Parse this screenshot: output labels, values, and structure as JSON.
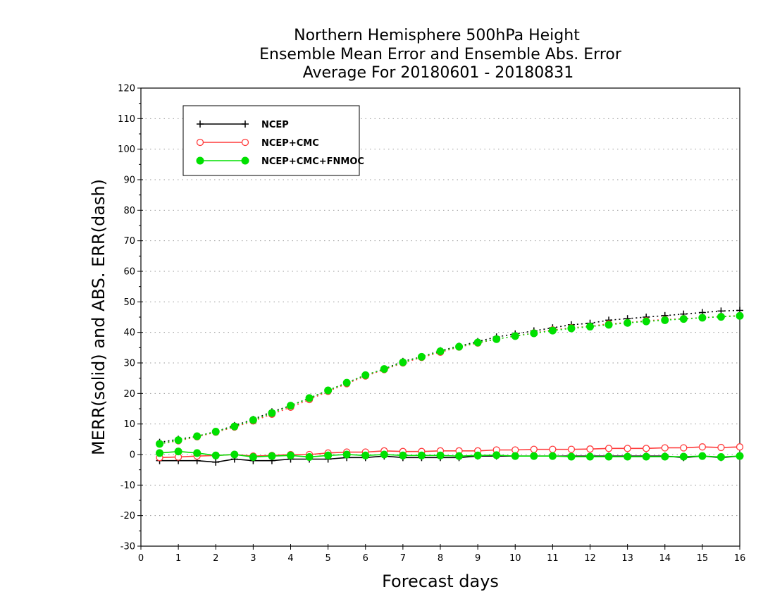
{
  "chart_data": {
    "type": "line",
    "title": [
      "Northern Hemisphere 500hPa Height",
      "Ensemble Mean Error and Ensemble Abs. Error",
      "Average For 20180601 - 20180831"
    ],
    "xlabel": "Forecast days",
    "ylabel": "MERR(solid) and ABS. ERR(dash)",
    "xlim": [
      0,
      16
    ],
    "ylim": [
      -30,
      120
    ],
    "xticks": [
      0,
      1,
      2,
      3,
      4,
      5,
      6,
      7,
      8,
      9,
      10,
      11,
      12,
      13,
      14,
      15,
      16
    ],
    "yticks": [
      -30,
      -20,
      -10,
      0,
      10,
      20,
      30,
      40,
      50,
      60,
      70,
      80,
      90,
      100,
      110,
      120
    ],
    "grid": "horizontal dotted",
    "legend_position": "top-left",
    "x": [
      0.5,
      1,
      1.5,
      2,
      2.5,
      3,
      3.5,
      4,
      4.5,
      5,
      5.5,
      6,
      6.5,
      7,
      7.5,
      8,
      8.5,
      9,
      9.5,
      10,
      10.5,
      11,
      11.5,
      12,
      12.5,
      13,
      13.5,
      14,
      14.5,
      15,
      15.5,
      16
    ],
    "series": [
      {
        "name": "NCEP",
        "color": "#000000",
        "marker": "plus",
        "merr": [
          -2,
          -2,
          -2,
          -2.5,
          -1.5,
          -2,
          -2,
          -1.5,
          -1.5,
          -1.5,
          -1,
          -1,
          -0.5,
          -1,
          -1,
          -1,
          -1,
          -0.5,
          -0.5,
          -0.5,
          -0.5,
          -0.5,
          -0.5,
          -0.5,
          -0.5,
          -0.5,
          -0.5,
          -0.5,
          -1,
          -0.5,
          -1,
          -0.5
        ],
        "abs_err": [
          4,
          5,
          6,
          7.5,
          9.5,
          11.5,
          14,
          16,
          18.5,
          21,
          23.5,
          26,
          28,
          30.5,
          32,
          34,
          35.5,
          37,
          38.5,
          39.5,
          40.5,
          41.5,
          42.5,
          43,
          44,
          44.5,
          45,
          45.5,
          46,
          46.5,
          47,
          47.2
        ]
      },
      {
        "name": "NCEP+CMC",
        "color": "#ff3b3b",
        "marker": "open-circle",
        "merr": [
          -1,
          -0.8,
          -0.5,
          -0.3,
          0,
          -0.5,
          -0.3,
          0,
          0,
          0.5,
          0.8,
          0.8,
          1.2,
          1,
          1,
          1.2,
          1.2,
          1.2,
          1.5,
          1.5,
          1.7,
          1.7,
          1.7,
          1.8,
          2,
          2,
          2,
          2.2,
          2.2,
          2.5,
          2.3,
          2.5
        ],
        "abs_err": [
          3.5,
          4.5,
          5.8,
          7.3,
          9,
          11,
          13.2,
          15.5,
          18,
          20.7,
          23.2,
          25.7,
          27.8,
          30,
          31.8,
          33.5,
          35.2,
          36.5,
          37.8,
          38.8,
          39.8,
          40.8,
          41.5,
          42,
          42.8,
          43.2,
          43.8,
          44.2,
          44.5,
          44.8,
          45.2,
          45.5
        ]
      },
      {
        "name": "NCEP+CMC+FNMOC",
        "color": "#00e000",
        "marker": "filled-circle",
        "merr": [
          0.5,
          1,
          0.5,
          -0.3,
          0,
          -0.8,
          -0.5,
          -0.3,
          -0.8,
          -0.3,
          0,
          -0.3,
          0,
          -0.3,
          -0.3,
          -0.3,
          -0.5,
          -0.3,
          -0.2,
          -0.5,
          -0.5,
          -0.5,
          -0.7,
          -0.7,
          -0.7,
          -0.7,
          -0.7,
          -0.7,
          -0.7,
          -0.5,
          -0.8,
          -0.5
        ],
        "abs_err": [
          3.5,
          4.7,
          6,
          7.5,
          9.2,
          11.3,
          13.6,
          16,
          18.5,
          21,
          23.5,
          26,
          28,
          30.2,
          32,
          33.8,
          35.3,
          36.7,
          37.8,
          38.8,
          39.7,
          40.6,
          41.3,
          41.9,
          42.5,
          43.1,
          43.6,
          44,
          44.4,
          44.8,
          45.1,
          45.4
        ]
      }
    ]
  }
}
